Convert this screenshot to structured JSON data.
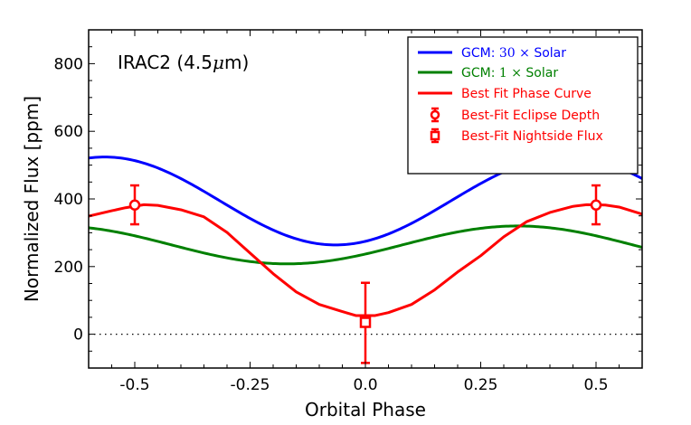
{
  "chart_data": {
    "type": "line",
    "title": "",
    "annotation": "IRAC2 (4.5μm)",
    "annotation_parts": [
      "IRAC2 (4.5",
      "μ",
      "m)"
    ],
    "xlabel": "Orbital Phase",
    "ylabel": "Normalized Flux [ppm]",
    "xlim": [
      -0.6,
      0.6
    ],
    "ylim": [
      -100,
      900
    ],
    "xticks": [
      -0.5,
      -0.25,
      0.0,
      0.25,
      0.5
    ],
    "xtick_labels": [
      "-0.5",
      "-0.25",
      "0.0",
      "0.25",
      "0.5"
    ],
    "yticks": [
      0,
      200,
      400,
      600,
      800
    ],
    "ytick_labels": [
      "0",
      "200",
      "400",
      "600",
      "800"
    ],
    "grid": false,
    "legend_position": "top-right",
    "reference_line": {
      "y": 0,
      "style": "dotted",
      "color": "#000000"
    },
    "series": [
      {
        "name": "GCM: 30× Solar",
        "legend_parts": [
          "GCM: ",
          "30",
          " × ",
          " Solar"
        ],
        "color": "#0000ff",
        "model": "sinusoid",
        "mean": 394,
        "amplitude": 130,
        "peak_phase": 0.435,
        "x": [
          -0.6,
          -0.55,
          -0.5,
          -0.45,
          -0.4,
          -0.35,
          -0.3,
          -0.25,
          -0.2,
          -0.15,
          -0.1,
          -0.05,
          0.0,
          0.05,
          0.1,
          0.15,
          0.2,
          0.25,
          0.3,
          0.35,
          0.4,
          0.45,
          0.5,
          0.55,
          0.6
        ],
        "y": [
          516,
          523,
          516,
          498,
          470,
          434,
          394,
          354,
          318,
          290,
          271,
          264,
          271,
          290,
          318,
          354,
          394,
          434,
          470,
          498,
          516,
          523,
          516,
          498,
          440
        ]
      },
      {
        "name": "GCM: 1× Solar",
        "legend_parts": [
          "GCM: ",
          "1",
          " × ",
          " Solar"
        ],
        "color": "#008000",
        "model": "sinusoid",
        "mean": 264,
        "amplitude": 56,
        "peak_phase": 0.33,
        "x": [
          -0.6,
          -0.55,
          -0.5,
          -0.45,
          -0.4,
          -0.35,
          -0.3,
          -0.25,
          -0.2,
          -0.15,
          -0.1,
          -0.05,
          0.0,
          0.05,
          0.1,
          0.15,
          0.2,
          0.25,
          0.3,
          0.35,
          0.4,
          0.45,
          0.5,
          0.55,
          0.6
        ],
        "y": [
          313,
          303,
          290,
          275,
          259,
          243,
          229,
          217,
          210,
          208,
          211,
          219,
          230,
          244,
          260,
          276,
          291,
          304,
          314,
          320,
          319,
          313,
          300,
          285,
          250
        ]
      },
      {
        "name": "Best Fit Phase Curve",
        "color": "#ff0000",
        "x": [
          -0.6,
          -0.55,
          -0.52,
          -0.48,
          -0.45,
          -0.4,
          -0.35,
          -0.3,
          -0.25,
          -0.2,
          -0.15,
          -0.1,
          -0.05,
          -0.02,
          0.02,
          0.05,
          0.1,
          0.15,
          0.2,
          0.25,
          0.3,
          0.35,
          0.4,
          0.45,
          0.48,
          0.52,
          0.55,
          0.6
        ],
        "y": [
          349,
          365,
          374,
          383,
          381,
          368,
          347,
          301,
          240,
          179,
          125,
          88,
          67,
          55,
          55,
          64,
          88,
          131,
          184,
          232,
          288,
          333,
          360,
          378,
          383,
          382,
          376,
          355
        ]
      }
    ],
    "points": [
      {
        "name": "Best-Fit Eclipse Depth",
        "marker": "circle",
        "color": "#ff0000",
        "x": -0.5,
        "y": 382,
        "yerr_low": 325,
        "yerr_high": 440
      },
      {
        "name": "Best-Fit Eclipse Depth",
        "marker": "circle",
        "color": "#ff0000",
        "x": 0.5,
        "y": 382,
        "yerr_low": 325,
        "yerr_high": 440
      },
      {
        "name": "Best-Fit Nightside Flux",
        "marker": "square",
        "color": "#ff0000",
        "x": 0.0,
        "y": 35,
        "yerr_low": -85,
        "yerr_high": 152
      }
    ],
    "legend": [
      {
        "label": "GCM: 30× Solar",
        "kind": "line",
        "color": "#0000ff"
      },
      {
        "label": "GCM: 1× Solar",
        "kind": "line",
        "color": "#008000"
      },
      {
        "label": "Best Fit Phase Curve",
        "kind": "line",
        "color": "#ff0000"
      },
      {
        "label": "Best-Fit Eclipse Depth",
        "kind": "circle-errorbar",
        "color": "#ff0000"
      },
      {
        "label": "Best-Fit Nightside Flux",
        "kind": "square-errorbar",
        "color": "#ff0000"
      }
    ]
  }
}
